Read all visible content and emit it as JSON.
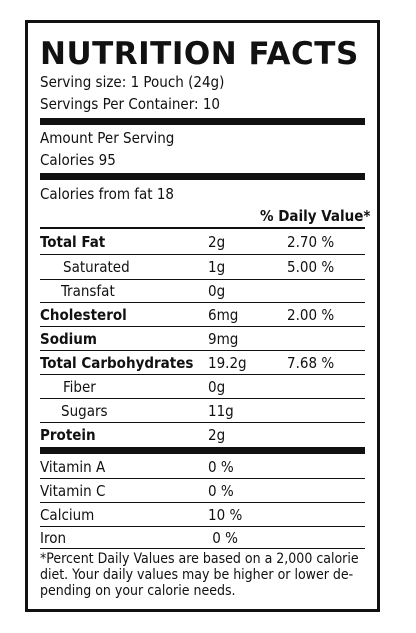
{
  "title": "NUTRITION FACTS",
  "serving_size": "Serving size: 1 Pouch (24g)",
  "servings_per_container": "Servings Per Container: 10",
  "amount_per_serving": "Amount Per Serving",
  "calories": "Calories  95",
  "calories_from_fat": "Calories from fat 18",
  "daily_value_header": "% Daily Value*",
  "nutrients": [
    {
      "name": "Total Fat",
      "amount": "2g",
      "dv": "2.70 %"
    },
    {
      "name": "Saturated",
      "amount": "1g",
      "dv": "5.00 %"
    },
    {
      "name": "Transfat",
      "amount": "0g",
      "dv": ""
    },
    {
      "name": "Cholesterol",
      "amount": "6mg",
      "dv": "2.00 %"
    },
    {
      "name": "Sodium",
      "amount": "9mg",
      "dv": ""
    },
    {
      "name": "Total Carbohydrates",
      "amount": "19.2g",
      "dv": "7.68 %"
    },
    {
      "name": "Fiber",
      "amount": "0g",
      "dv": ""
    },
    {
      "name": "Sugars",
      "amount": "11g",
      "dv": ""
    },
    {
      "name": "Protein",
      "amount": "2g",
      "dv": ""
    }
  ],
  "vitamins": [
    {
      "name": "Vitamin A",
      "dv": "0 %"
    },
    {
      "name": "Vitamin C",
      "dv": "0 %"
    },
    {
      "name": "Calcium",
      "dv": "10 %"
    },
    {
      "name": "Iron",
      "dv": " 0 %"
    }
  ],
  "footnote": "*Percent Daily Values are based on a 2,000 calorie diet. Your daily values may be higher or lower de-pending on your calorie needs."
}
